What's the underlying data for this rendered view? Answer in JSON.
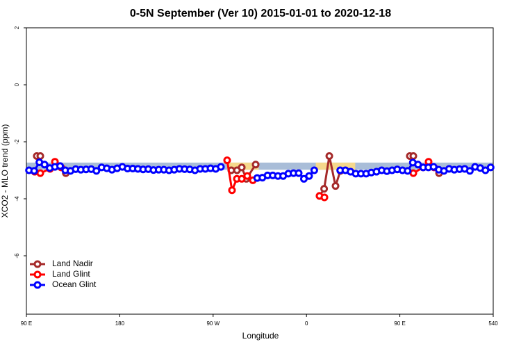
{
  "chart_data": {
    "type": "line",
    "title": "0-5N September (Ver 10)   2015-01-01 to 2020-12-18",
    "x_label": "Longitude",
    "y_label": "XCO2 - MLO trend (ppm)",
    "xlim": [
      90,
      540
    ],
    "ylim": [
      -8,
      2
    ],
    "xticks": [
      {
        "value": 90,
        "label": "90 E"
      },
      180,
      {
        "value": 270,
        "label": "90 W"
      },
      {
        "value": 360,
        "label": "0"
      },
      {
        "value": 450,
        "label": "90 E"
      },
      540
    ],
    "yticks": [
      -6,
      -4,
      -2,
      0,
      2
    ],
    "band": {
      "lower": -2.98,
      "upper": -2.73,
      "color": "#a9bdd8",
      "land_color": "#f5d88c",
      "land_ranges": [
        [
          284,
          314
        ],
        [
          369,
          407
        ]
      ]
    },
    "legend": "bottom-left",
    "series": [
      {
        "name": "Land Nadir",
        "color": "#a52a2a",
        "x": [
          100,
          103.4,
          null,
          128,
          null,
          287.5,
          293,
          297.6,
          302,
          311,
          null,
          372.6,
          377,
          382,
          388,
          392.7,
          null,
          459.6,
          463,
          null,
          487.8
        ],
        "values": [
          -2.5,
          -2.5,
          null,
          -3.1,
          null,
          -3.0,
          -3.0,
          -2.9,
          -3.3,
          -2.8,
          null,
          -3.9,
          -3.65,
          -2.5,
          -3.55,
          -3.02,
          null,
          -2.5,
          -2.5,
          null,
          -3.1
        ]
      },
      {
        "name": "Land Glint",
        "color": "#ff0000",
        "x": [
          98,
          103.4,
          112.8,
          117.5,
          123.5,
          null,
          283.5,
          288.2,
          292.9,
          297.6,
          302.9,
          308.3,
          null,
          372.6,
          377.3,
          null,
          463,
          472.4,
          477.7,
          483
        ],
        "values": [
          -3.05,
          -3.1,
          -2.95,
          -2.7,
          -2.9,
          null,
          -2.65,
          -3.7,
          -3.3,
          -3.3,
          -3.2,
          -3.35,
          null,
          -3.9,
          -3.95,
          null,
          -3.1,
          -2.9,
          -2.7,
          -2.9
        ]
      },
      {
        "name": "Ocean Glint",
        "color": "#0000ff",
        "x": [
          92.5,
          97.5,
          102.5,
          107.5,
          112.5,
          117.5,
          122.5,
          127.5,
          132.5,
          137.5,
          142.5,
          147.5,
          152.5,
          157.5,
          162.5,
          167.5,
          172.5,
          177.5,
          182.5,
          187.5,
          192.5,
          197.5,
          202.5,
          207.5,
          212.5,
          217.5,
          222.5,
          227.5,
          232.5,
          237.5,
          242.5,
          247.5,
          252.5,
          257.5,
          262.5,
          267.5,
          272.5,
          277.5,
          null,
          312.5,
          317.5,
          322.5,
          327.5,
          332.5,
          337.5,
          342.5,
          347.5,
          352.5,
          357.5,
          362.5,
          367.5,
          null,
          392.5,
          397.5,
          402.5,
          407.5,
          412.5,
          417.5,
          422.5,
          427.5,
          432.5,
          437.5,
          442.5,
          447.5,
          452.5,
          457.5,
          462.5,
          467.5,
          472.5,
          477.5,
          482.5,
          487.5,
          492.5,
          497.5,
          502.5,
          507.5,
          512.5,
          517.5,
          522.5,
          527.5,
          532.5,
          537.5
        ],
        "values": [
          -3.0,
          -3.02,
          -2.72,
          -2.8,
          -2.92,
          -2.88,
          -2.85,
          -3.0,
          -3.02,
          -2.96,
          -2.98,
          -2.97,
          -2.96,
          -3.02,
          -2.9,
          -2.93,
          -2.98,
          -2.93,
          -2.88,
          -2.94,
          -2.94,
          -2.95,
          -2.97,
          -2.96,
          -2.99,
          -2.98,
          -2.98,
          -3.0,
          -2.98,
          -2.95,
          -2.96,
          -2.97,
          -3.0,
          -2.95,
          -2.95,
          -2.93,
          -2.95,
          -2.88,
          null,
          -3.27,
          -3.26,
          -3.18,
          -3.18,
          -3.2,
          -3.2,
          -3.12,
          -3.1,
          -3.1,
          -3.3,
          -3.2,
          -3.0,
          null,
          -3.0,
          -3.0,
          -3.05,
          -3.12,
          -3.12,
          -3.12,
          -3.08,
          -3.05,
          -3.0,
          -3.03,
          -3.0,
          -2.97,
          -3.0,
          -3.02,
          -2.73,
          -2.8,
          -2.9,
          -2.9,
          -2.88,
          -2.98,
          -3.02,
          -2.95,
          -2.98,
          -2.96,
          -2.95,
          -3.02,
          -2.88,
          -2.92,
          -3.0,
          -2.9
        ]
      }
    ]
  }
}
